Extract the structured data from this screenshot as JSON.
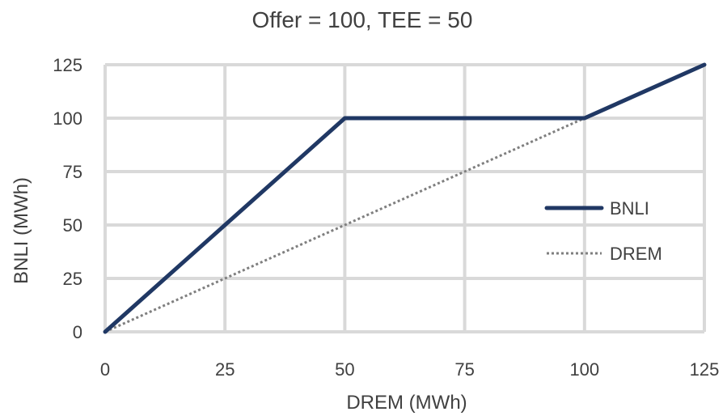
{
  "chart_data": {
    "type": "line",
    "title": "Offer = 100, TEE = 50",
    "xlabel": "DREM (MWh)",
    "ylabel": "BNLI (MWh)",
    "xlim": [
      0,
      125
    ],
    "ylim": [
      0,
      125
    ],
    "xticks": [
      "0",
      "25",
      "50",
      "75",
      "100",
      "125"
    ],
    "yticks": [
      "0",
      "25",
      "50",
      "75",
      "100",
      "125"
    ],
    "grid": true,
    "legend_position": "right",
    "series": [
      {
        "name": "BNLI",
        "color": "#203864",
        "style": "solid",
        "points": [
          [
            0,
            0
          ],
          [
            50,
            100
          ],
          [
            100,
            100
          ],
          [
            125,
            125
          ]
        ]
      },
      {
        "name": "DREM",
        "color": "#7f7f7f",
        "style": "dotted",
        "points": [
          [
            0,
            0
          ],
          [
            125,
            125
          ]
        ]
      }
    ]
  }
}
